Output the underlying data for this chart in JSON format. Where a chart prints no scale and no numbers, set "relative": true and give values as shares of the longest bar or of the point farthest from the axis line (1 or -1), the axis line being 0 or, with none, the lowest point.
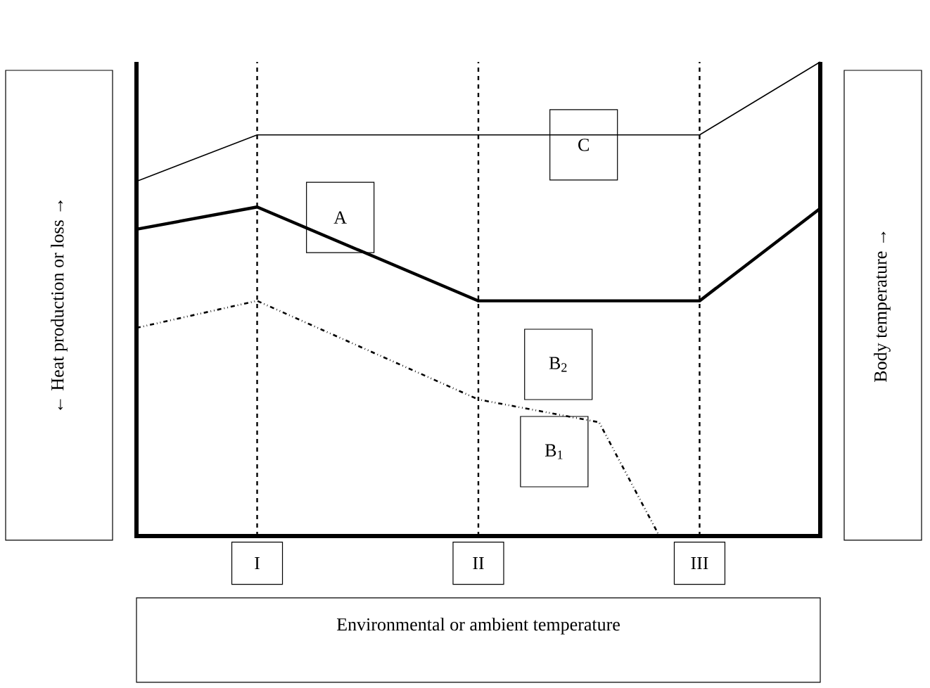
{
  "chart_data": {
    "type": "line",
    "relative": true,
    "tick_labels": "x",
    "grid": "x",
    "xlabel": "Environmental or ambient temperature",
    "ylabel": "← Heat production or loss →",
    "y2label": "Body temperature →",
    "categories": [
      null,
      null,
      null,
      null,
      null,
      null,
      "I",
      null,
      null,
      null,
      null,
      null,
      null,
      null,
      null,
      null,
      null,
      "II",
      null,
      null,
      null,
      null,
      null,
      null,
      null,
      null,
      null,
      null,
      "III",
      null,
      null,
      null,
      null,
      null,
      null
    ],
    "series": [
      {
        "color": "#000000",
        "line_style": "solid",
        "values": [
          0.748,
          null,
          null,
          null,
          null,
          null,
          0.846,
          null,
          null,
          null,
          null,
          null,
          null,
          null,
          null,
          null,
          null,
          null,
          null,
          null,
          null,
          null,
          null,
          null,
          null,
          null,
          null,
          null,
          0.846,
          null,
          null,
          null,
          null,
          null,
          1
        ]
      },
      {
        "color": "#000000",
        "line_style": "solid",
        "values": [
          0.647,
          null,
          null,
          null,
          null,
          null,
          0.694,
          null,
          null,
          null,
          null,
          null,
          null,
          null,
          null,
          null,
          null,
          0.496,
          null,
          null,
          null,
          null,
          null,
          null,
          null,
          null,
          null,
          null,
          0.496,
          null,
          null,
          null,
          null,
          null,
          0.691
        ]
      },
      {
        "color": "#000000",
        "line_style": "dashdot",
        "values": [
          0.439,
          null,
          null,
          null,
          null,
          null,
          0.496,
          null,
          null,
          null,
          null,
          null,
          null,
          null,
          null,
          null,
          null,
          0.288,
          null,
          null,
          null,
          null,
          null,
          0.24,
          null,
          null,
          0,
          null,
          null,
          null,
          null,
          null,
          null,
          null,
          null
        ]
      }
    ],
    "annotations": [
      "C",
      "A",
      "B$_{2}$",
      "B$_{1}$"
    ]
  }
}
